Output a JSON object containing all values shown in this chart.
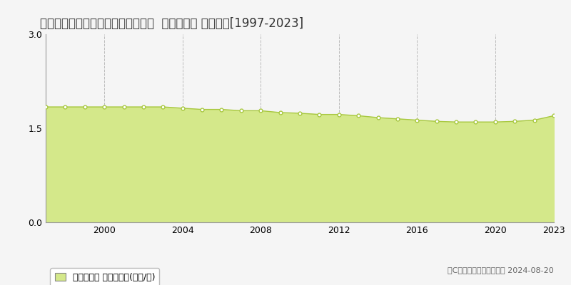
{
  "title": "北海道磯谷郡蘭越町昆布町８３番１  基準地価格 地価推移[1997-2023]",
  "years": [
    1997,
    1998,
    1999,
    2000,
    2001,
    2002,
    2003,
    2004,
    2005,
    2006,
    2007,
    2008,
    2009,
    2010,
    2011,
    2012,
    2013,
    2014,
    2015,
    2016,
    2017,
    2018,
    2019,
    2020,
    2021,
    2022,
    2023
  ],
  "values": [
    1.84,
    1.84,
    1.84,
    1.84,
    1.84,
    1.84,
    1.84,
    1.82,
    1.8,
    1.8,
    1.78,
    1.78,
    1.75,
    1.74,
    1.72,
    1.72,
    1.7,
    1.67,
    1.65,
    1.63,
    1.61,
    1.6,
    1.6,
    1.6,
    1.61,
    1.63,
    1.7
  ],
  "line_color": "#a8c840",
  "fill_color": "#d4e88a",
  "marker_facecolor": "#ffffff",
  "marker_edgecolor": "#a8c840",
  "ylim": [
    0,
    3
  ],
  "yticks": [
    0,
    1.5,
    3
  ],
  "grid_color": "#bbbbbb",
  "background_color": "#f5f5f5",
  "legend_label": "基準地価格 平均坪単価(万円/坪)",
  "copyright_text": "（C）土地価格ドットコム 2024-08-20",
  "title_fontsize": 12,
  "tick_fontsize": 9,
  "legend_fontsize": 9,
  "copyright_fontsize": 8
}
